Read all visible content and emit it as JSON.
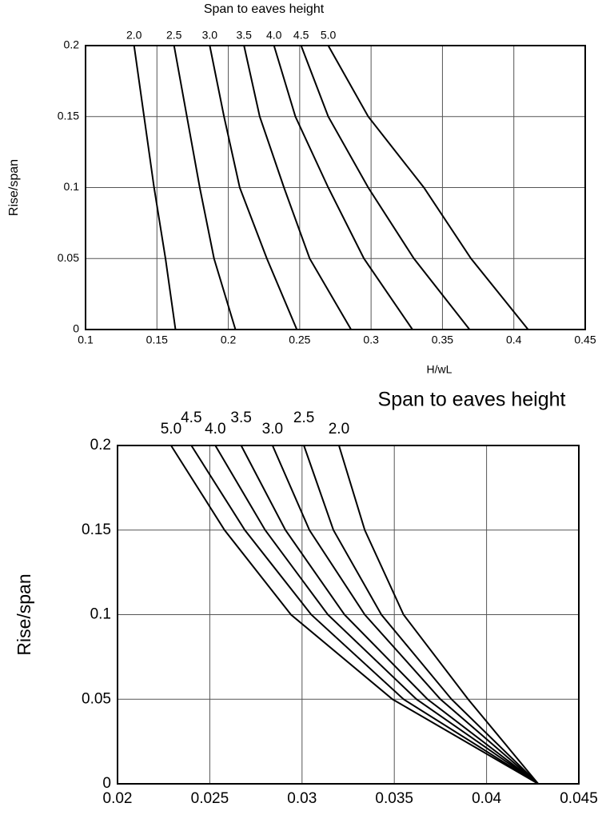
{
  "chart_data": [
    {
      "type": "line",
      "title": "Span to eaves height",
      "xlabel": "H/wL",
      "ylabel": "Rise/span",
      "xlim": [
        0.1,
        0.45
      ],
      "xticks": [
        0.1,
        0.15,
        0.2,
        0.25,
        0.3,
        0.35,
        0.4,
        0.45
      ],
      "ylim": [
        0,
        0.2
      ],
      "yticks": [
        0,
        0.05,
        0.1,
        0.15,
        0.2
      ],
      "grid": true,
      "series": [
        {
          "name": "2.0",
          "color": "#000000",
          "x": [
            0.163,
            0.156,
            0.148,
            0.141,
            0.134
          ],
          "values": [
            0,
            0.05,
            0.1,
            0.15,
            0.2
          ]
        },
        {
          "name": "2.5",
          "color": "#000000",
          "x": [
            0.205,
            0.19,
            0.18,
            0.171,
            0.162
          ],
          "values": [
            0,
            0.05,
            0.1,
            0.15,
            0.2
          ]
        },
        {
          "name": "3.0",
          "color": "#000000",
          "x": [
            0.248,
            0.227,
            0.208,
            0.197,
            0.187
          ],
          "values": [
            0,
            0.05,
            0.1,
            0.15,
            0.2
          ]
        },
        {
          "name": "3.5",
          "color": "#000000",
          "x": [
            0.286,
            0.257,
            0.239,
            0.222,
            0.211
          ],
          "values": [
            0,
            0.05,
            0.1,
            0.15,
            0.2
          ]
        },
        {
          "name": "4.0",
          "color": "#000000",
          "x": [
            0.329,
            0.295,
            0.27,
            0.247,
            0.232
          ],
          "values": [
            0,
            0.05,
            0.1,
            0.15,
            0.2
          ]
        },
        {
          "name": "4.5",
          "color": "#000000",
          "x": [
            0.369,
            0.33,
            0.298,
            0.27,
            0.251
          ],
          "values": [
            0,
            0.05,
            0.1,
            0.15,
            0.2
          ]
        },
        {
          "name": "5.0",
          "color": "#000000",
          "x": [
            0.41,
            0.37,
            0.337,
            0.298,
            0.27
          ],
          "values": [
            0,
            0.05,
            0.1,
            0.15,
            0.2
          ]
        }
      ]
    },
    {
      "type": "line",
      "title": "Span to eaves height",
      "ylabel": "Rise/span",
      "xlim": [
        0.02,
        0.045
      ],
      "xticks": [
        0.02,
        0.025,
        0.03,
        0.035,
        0.04,
        0.045
      ],
      "ylim": [
        0,
        0.2
      ],
      "yticks": [
        0,
        0.05,
        0.1,
        0.15,
        0.2
      ],
      "grid": true,
      "series": [
        {
          "name": "5.0",
          "color": "#000000",
          "x": [
            0.0428,
            0.0349,
            0.0294,
            0.0258,
            0.0229
          ],
          "values": [
            0,
            0.05,
            0.1,
            0.15,
            0.2
          ]
        },
        {
          "name": "4.5",
          "color": "#000000",
          "x": [
            0.0428,
            0.0355,
            0.0305,
            0.0269,
            0.024
          ],
          "values": [
            0,
            0.05,
            0.1,
            0.15,
            0.2
          ]
        },
        {
          "name": "4.0",
          "color": "#000000",
          "x": [
            0.0428,
            0.0362,
            0.0314,
            0.028,
            0.0253
          ],
          "values": [
            0,
            0.05,
            0.1,
            0.15,
            0.2
          ]
        },
        {
          "name": "3.5",
          "color": "#000000",
          "x": [
            0.0428,
            0.0368,
            0.0323,
            0.0291,
            0.0267
          ],
          "values": [
            0,
            0.05,
            0.1,
            0.15,
            0.2
          ]
        },
        {
          "name": "3.0",
          "color": "#000000",
          "x": [
            0.0428,
            0.0375,
            0.0334,
            0.0304,
            0.0284
          ],
          "values": [
            0,
            0.05,
            0.1,
            0.15,
            0.2
          ]
        },
        {
          "name": "2.5",
          "color": "#000000",
          "x": [
            0.0428,
            0.0381,
            0.0343,
            0.0317,
            0.0301
          ],
          "values": [
            0,
            0.05,
            0.1,
            0.15,
            0.2
          ]
        },
        {
          "name": "2.0",
          "color": "#000000",
          "x": [
            0.0428,
            0.039,
            0.0355,
            0.0334,
            0.032
          ],
          "values": [
            0,
            0.05,
            0.1,
            0.15,
            0.2
          ]
        }
      ]
    }
  ]
}
